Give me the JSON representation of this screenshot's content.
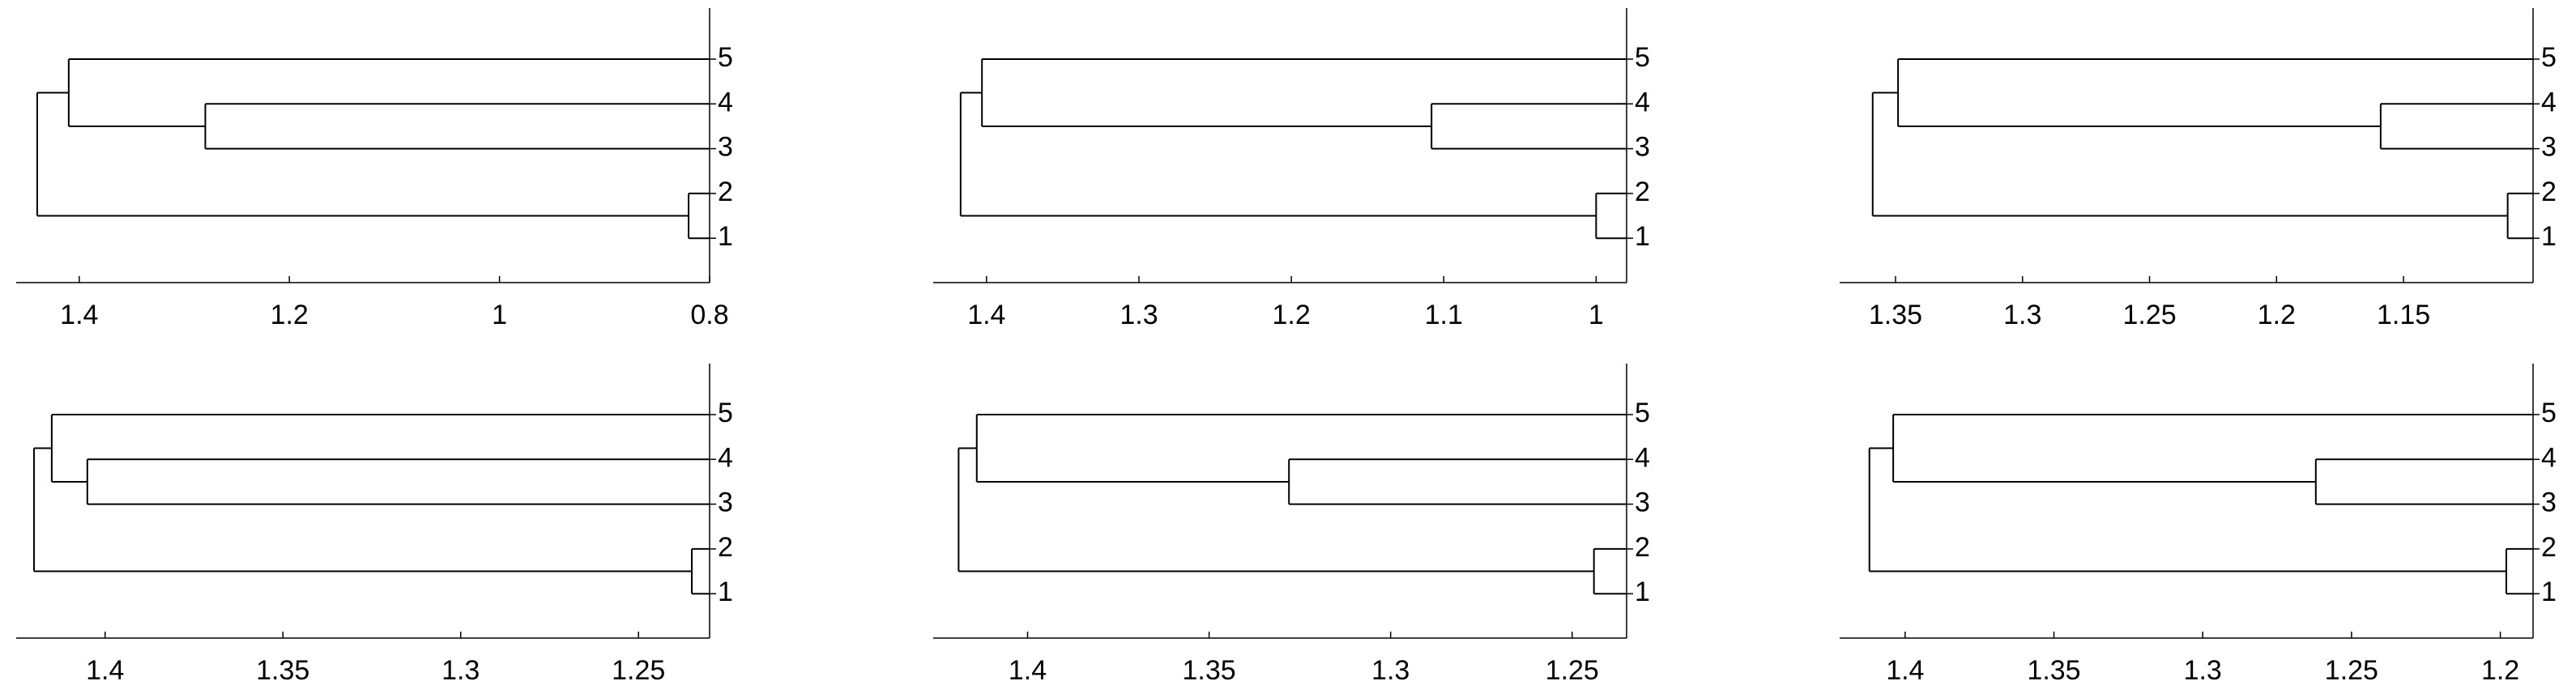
{
  "chart_data": [
    {
      "type": "dendrogram",
      "leaves": [
        "5",
        "4",
        "3",
        "2",
        "1"
      ],
      "merges": [
        {
          "join": [
            3,
            4
          ],
          "height": 0.82
        },
        {
          "join": [
            1,
            2
          ],
          "height": 1.28
        },
        {
          "join": [
            0,
            6
          ],
          "height": 1.41
        },
        {
          "join": [
            5,
            7
          ],
          "height": 1.44
        }
      ],
      "xlim": [
        1.46,
        0.8
      ],
      "xticks": [
        1.4,
        1.2,
        1,
        0.8
      ]
    },
    {
      "type": "dendrogram",
      "leaves": [
        "5",
        "4",
        "3",
        "2",
        "1"
      ],
      "merges": [
        {
          "join": [
            3,
            4
          ],
          "height": 1.0
        },
        {
          "join": [
            1,
            2
          ],
          "height": 1.108
        },
        {
          "join": [
            0,
            6
          ],
          "height": 1.403
        },
        {
          "join": [
            5,
            7
          ],
          "height": 1.417
        }
      ],
      "xlim": [
        1.435,
        0.98
      ],
      "xticks": [
        1.4,
        1.3,
        1.2,
        1.1,
        1
      ]
    },
    {
      "type": "dendrogram",
      "leaves": [
        "5",
        "4",
        "3",
        "2",
        "1"
      ],
      "merges": [
        {
          "join": [
            3,
            4
          ],
          "height": 1.109
        },
        {
          "join": [
            1,
            2
          ],
          "height": 1.159
        },
        {
          "join": [
            0,
            6
          ],
          "height": 1.349
        },
        {
          "join": [
            5,
            7
          ],
          "height": 1.359
        }
      ],
      "xlim": [
        1.372,
        1.099
      ],
      "xticks": [
        1.35,
        1.3,
        1.25,
        1.2,
        1.15
      ]
    },
    {
      "type": "dendrogram",
      "leaves": [
        "5",
        "4",
        "3",
        "2",
        "1"
      ],
      "merges": [
        {
          "join": [
            3,
            4
          ],
          "height": 1.235
        },
        {
          "join": [
            1,
            2
          ],
          "height": 1.405
        },
        {
          "join": [
            0,
            6
          ],
          "height": 1.415
        },
        {
          "join": [
            5,
            7
          ],
          "height": 1.42
        }
      ],
      "xlim": [
        1.425,
        1.23
      ],
      "xticks": [
        1.4,
        1.35,
        1.3,
        1.25
      ]
    },
    {
      "type": "dendrogram",
      "leaves": [
        "5",
        "4",
        "3",
        "2",
        "1"
      ],
      "merges": [
        {
          "join": [
            3,
            4
          ],
          "height": 1.244
        },
        {
          "join": [
            1,
            2
          ],
          "height": 1.328
        },
        {
          "join": [
            0,
            6
          ],
          "height": 1.414
        },
        {
          "join": [
            5,
            7
          ],
          "height": 1.419
        }
      ],
      "xlim": [
        1.426,
        1.235
      ],
      "xticks": [
        1.4,
        1.35,
        1.3,
        1.25
      ]
    },
    {
      "type": "dendrogram",
      "leaves": [
        "5",
        "4",
        "3",
        "2",
        "1"
      ],
      "merges": [
        {
          "join": [
            3,
            4
          ],
          "height": 1.198
        },
        {
          "join": [
            1,
            2
          ],
          "height": 1.262
        },
        {
          "join": [
            0,
            6
          ],
          "height": 1.404
        },
        {
          "join": [
            5,
            7
          ],
          "height": 1.412
        }
      ],
      "xlim": [
        1.422,
        1.189
      ],
      "xticks": [
        1.4,
        1.35,
        1.3,
        1.25,
        1.2
      ]
    }
  ]
}
